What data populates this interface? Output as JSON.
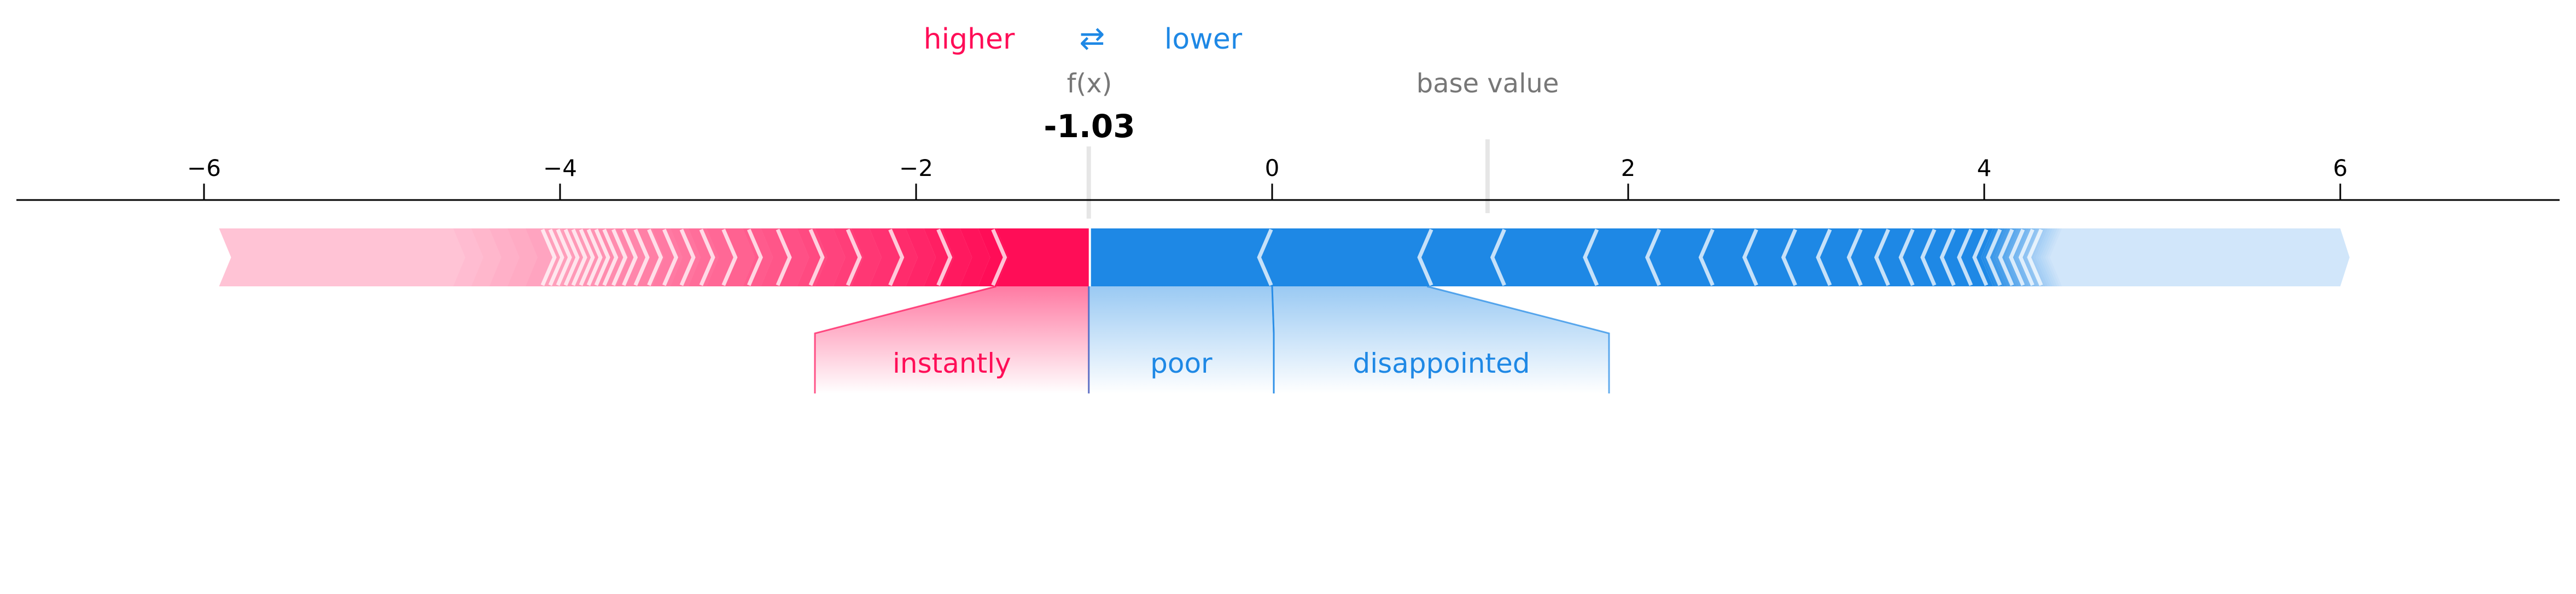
{
  "legend": {
    "higher_label": "higher",
    "lower_label": "lower",
    "arrows_glyph": "⇄"
  },
  "labels": {
    "fx_label": "f(x)",
    "fx_value": "-1.03",
    "base_value_label": "base value"
  },
  "colors": {
    "positive": "#ff0d57",
    "positive_light": "#ffc3d5",
    "negative": "#1e88e5",
    "negative_light": "#d1e6fa",
    "axis": "#000000",
    "muted_text": "#777777"
  },
  "chart_data": {
    "type": "force",
    "title": "",
    "xlabel": "",
    "ylabel": "",
    "xlim": [
      -7.1,
      7.1
    ],
    "x_ticks": [
      {
        "value": -6,
        "label": "−6"
      },
      {
        "value": -4,
        "label": "−4"
      },
      {
        "value": -2,
        "label": "−2"
      },
      {
        "value": 0,
        "label": "0"
      },
      {
        "value": 2,
        "label": "2"
      },
      {
        "value": 4,
        "label": "4"
      },
      {
        "value": 6,
        "label": "6"
      }
    ],
    "output_value": -1.03,
    "base_value": 1.21,
    "bar_extent": [
      -5.9,
      6.0
    ],
    "positive_features": [
      {
        "name": "instantly",
        "start": -1.03,
        "end": -1.55
      }
    ],
    "negative_features": [
      {
        "name": "poor",
        "start": -1.03,
        "end": 0.0
      },
      {
        "name": "disappointed",
        "start": 0.0,
        "end": 0.87
      }
    ]
  }
}
